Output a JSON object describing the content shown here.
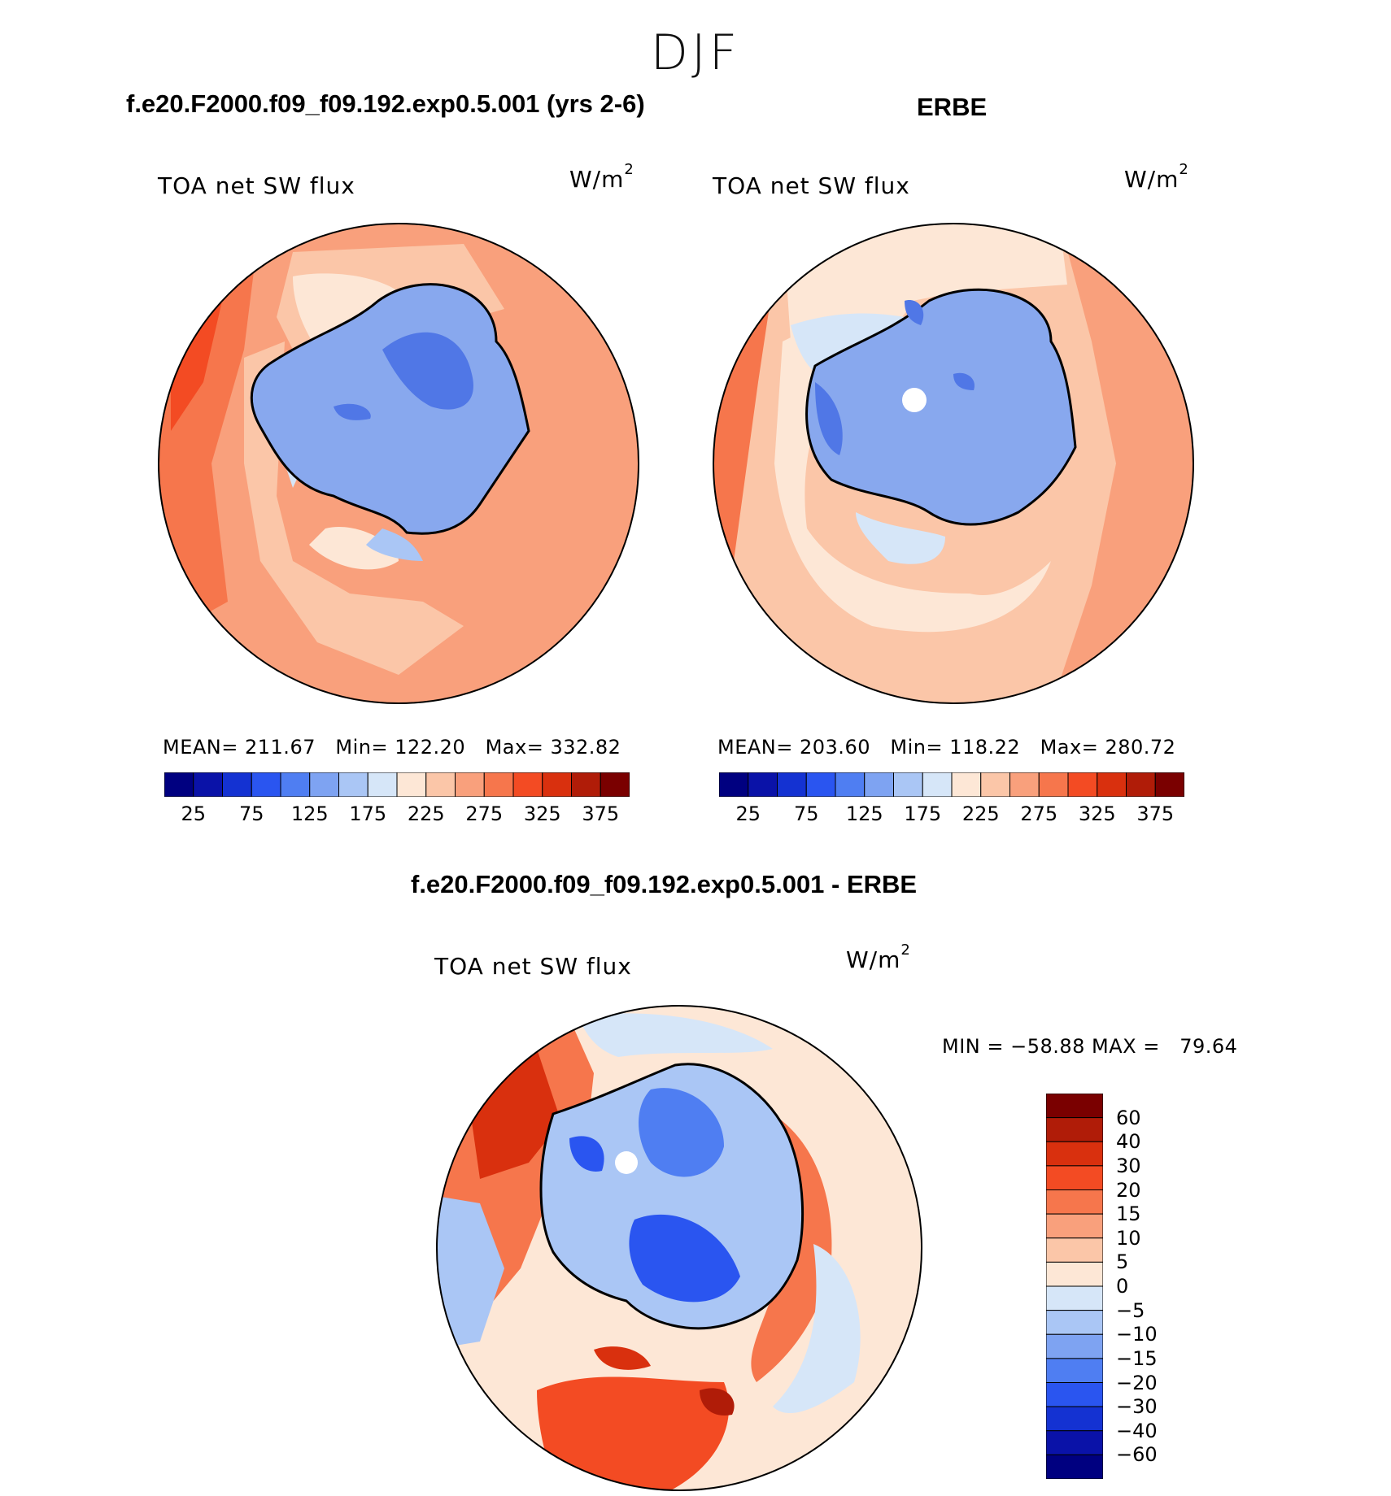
{
  "header": {
    "season": "DJF"
  },
  "panels": [
    {
      "title": "f.e20.F2000.f09_f09.192.exp0.5.001 (yrs 2-6)",
      "variable_label": "TOA net SW flux",
      "units": "W/m",
      "units_exp": "2",
      "stats": {
        "mean_label": "MEAN=",
        "mean": "211.67",
        "min_label": "Min=",
        "min": "122.20",
        "max_label": "Max=",
        "max": "332.82"
      },
      "colorbar_ticks": [
        "25",
        "75",
        "125",
        "175",
        "225",
        "275",
        "325",
        "375"
      ]
    },
    {
      "title": "ERBE",
      "variable_label": "TOA net SW flux",
      "units": "W/m",
      "units_exp": "2",
      "stats": {
        "mean_label": "MEAN=",
        "mean": "203.60",
        "min_label": "Min=",
        "min": "118.22",
        "max_label": "Max=",
        "max": "280.72"
      },
      "colorbar_ticks": [
        "25",
        "75",
        "125",
        "175",
        "225",
        "275",
        "325",
        "375"
      ]
    },
    {
      "title": "f.e20.F2000.f09_f09.192.exp0.5.001 - ERBE",
      "variable_label": "TOA net SW flux",
      "units": "W/m",
      "units_exp": "2",
      "range_text": "MIN = −58.88 MAX =   79.64",
      "colorbar_levels": [
        "60",
        "40",
        "30",
        "20",
        "15",
        "10",
        "5",
        "0",
        "−5",
        "−10",
        "−15",
        "−20",
        "−30",
        "−40",
        "−60"
      ]
    }
  ],
  "colors": {
    "abs_scale": [
      "#000080",
      "#0a12a8",
      "#1432d2",
      "#2a55f0",
      "#4f7ef2",
      "#7ea3f2",
      "#aac6f5",
      "#d6e6f8",
      "#fde7d6",
      "#fbc6a8",
      "#f9a07c",
      "#f6764c",
      "#f34b23",
      "#d9300e",
      "#b01c08",
      "#7a0000"
    ],
    "diff_scale": [
      "#7a0000",
      "#b01c08",
      "#d9300e",
      "#f34b23",
      "#f6764c",
      "#f9a07c",
      "#fbc6a8",
      "#fde7d6",
      "#d6e6f8",
      "#aac6f5",
      "#7ea3f2",
      "#4f7ef2",
      "#2a55f0",
      "#1432d2",
      "#0a12a8",
      "#000080"
    ],
    "continent_fill": "#88a8ee",
    "continent_deep": "#5077e6"
  },
  "chart_data": [
    {
      "type": "heatmap",
      "title": "f.e20.F2000.f09_f09.192.exp0.5.001 (yrs 2-6)",
      "subtitle": "TOA net SW flux",
      "units": "W/m2",
      "projection": "south polar stereographic",
      "contour_levels": [
        25,
        50,
        75,
        100,
        125,
        150,
        175,
        200,
        225,
        250,
        275,
        300,
        325,
        350,
        375
      ],
      "mean": 211.67,
      "min": 122.2,
      "max": 332.82
    },
    {
      "type": "heatmap",
      "title": "ERBE",
      "subtitle": "TOA net SW flux",
      "units": "W/m2",
      "projection": "south polar stereographic",
      "contour_levels": [
        25,
        50,
        75,
        100,
        125,
        150,
        175,
        200,
        225,
        250,
        275,
        300,
        325,
        350,
        375
      ],
      "mean": 203.6,
      "min": 118.22,
      "max": 280.72
    },
    {
      "type": "heatmap",
      "title": "f.e20.F2000.f09_f09.192.exp0.5.001 - ERBE",
      "subtitle": "TOA net SW flux",
      "units": "W/m2",
      "projection": "south polar stereographic",
      "contour_levels": [
        -60,
        -40,
        -30,
        -20,
        -15,
        -10,
        -5,
        0,
        5,
        10,
        15,
        20,
        30,
        40,
        60
      ],
      "min": -58.88,
      "max": 79.64
    }
  ]
}
